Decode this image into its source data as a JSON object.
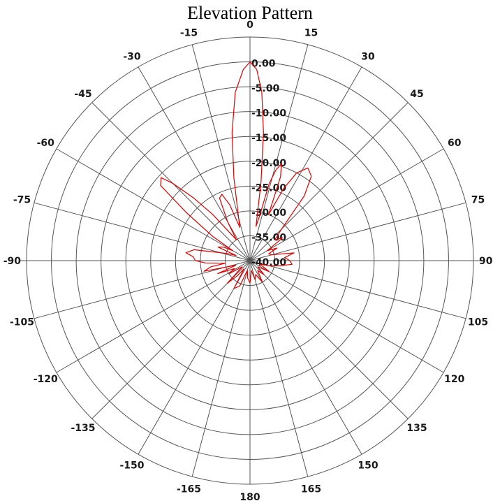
{
  "chart_data": {
    "type": "polar-line",
    "title": "Elevation Pattern",
    "colors": {
      "trace": "#e00000",
      "grid": "#555555",
      "text": "#1a1a1a"
    },
    "radial_axis": {
      "unit": "dB",
      "range": [
        -40,
        0
      ],
      "tick_labels": [
        "0.00",
        "-5.00",
        "-10.00",
        "-15.00",
        "-20.00",
        "-25.00",
        "-30.00",
        "-35.00",
        "-40.00"
      ],
      "tick_values": [
        0,
        -5,
        -10,
        -15,
        -20,
        -25,
        -30,
        -35,
        -40
      ],
      "outer_ring_value": 5
    },
    "angular_axis": {
      "direction": "clockwise",
      "zero": "top",
      "step": 15,
      "tick_labels": [
        "0",
        "15",
        "30",
        "45",
        "60",
        "75",
        "90",
        "105",
        "120",
        "135",
        "150",
        "165",
        "180",
        "165",
        "150",
        "135",
        "120",
        "105",
        "90",
        "75",
        "60",
        "45",
        "30",
        "15"
      ],
      "left_tick_labels": [
        "-15",
        "-30",
        "-45",
        "-60",
        "-75",
        "-90",
        "-105",
        "-120",
        "-135",
        "-150",
        "-165"
      ]
    },
    "series": [
      {
        "points": [
          [
            -180,
            -35.5
          ],
          [
            -172,
            -36.5
          ],
          [
            -165,
            -38
          ],
          [
            -158,
            -34.5
          ],
          [
            -150,
            -33.5
          ],
          [
            -144,
            -38
          ],
          [
            -140,
            -36
          ],
          [
            -135,
            -33.5
          ],
          [
            -128,
            -38
          ],
          [
            -122,
            -35
          ],
          [
            -117,
            -36.5
          ],
          [
            -112,
            -33
          ],
          [
            -108,
            -37
          ],
          [
            -103,
            -30.5
          ],
          [
            -99,
            -32
          ],
          [
            -96,
            -35
          ],
          [
            -93,
            -31
          ],
          [
            -90,
            -29
          ],
          [
            -86,
            -28.5
          ],
          [
            -83,
            -27
          ],
          [
            -79,
            -28.5
          ],
          [
            -76,
            -33
          ],
          [
            -73,
            -35
          ],
          [
            -70,
            -37
          ],
          [
            -67,
            -33
          ],
          [
            -63,
            -34
          ],
          [
            -60,
            -36
          ],
          [
            -57,
            -31
          ],
          [
            -53,
            -24
          ],
          [
            -50,
            -16.5
          ],
          [
            -47,
            -15.5
          ],
          [
            -45,
            -18
          ],
          [
            -42,
            -23
          ],
          [
            -39,
            -28
          ],
          [
            -36,
            -33
          ],
          [
            -33,
            -35
          ],
          [
            -30,
            -31
          ],
          [
            -26,
            -26
          ],
          [
            -23,
            -25.5
          ],
          [
            -20,
            -28
          ],
          [
            -17,
            -33
          ],
          [
            -14,
            -30
          ],
          [
            -11,
            -23
          ],
          [
            -8,
            -14
          ],
          [
            -5,
            -6
          ],
          [
            -2,
            -1.5
          ],
          [
            0,
            0
          ],
          [
            2,
            -1.5
          ],
          [
            4,
            -6
          ],
          [
            6,
            -14
          ],
          [
            8,
            -24
          ],
          [
            10,
            -33
          ],
          [
            12,
            -31
          ],
          [
            14,
            -24
          ],
          [
            16,
            -21
          ],
          [
            18,
            -19.5
          ],
          [
            20,
            -22
          ],
          [
            22,
            -30
          ],
          [
            25,
            -24
          ],
          [
            28,
            -20
          ],
          [
            32,
            -18
          ],
          [
            36,
            -19
          ],
          [
            40,
            -23
          ],
          [
            45,
            -31
          ],
          [
            50,
            -33.5
          ],
          [
            55,
            -32
          ],
          [
            60,
            -36
          ],
          [
            65,
            -34
          ],
          [
            70,
            -36
          ],
          [
            75,
            -35.5
          ],
          [
            80,
            -31
          ],
          [
            85,
            -33
          ],
          [
            90,
            -32
          ],
          [
            95,
            -31.5
          ],
          [
            100,
            -34
          ],
          [
            105,
            -36
          ],
          [
            110,
            -38
          ],
          [
            115,
            -37
          ],
          [
            120,
            -35.5
          ],
          [
            128,
            -38
          ],
          [
            135,
            -36
          ],
          [
            142,
            -37.5
          ],
          [
            150,
            -35
          ],
          [
            158,
            -37
          ],
          [
            165,
            -36
          ],
          [
            172,
            -38
          ],
          [
            180,
            -35.5
          ]
        ]
      }
    ]
  }
}
